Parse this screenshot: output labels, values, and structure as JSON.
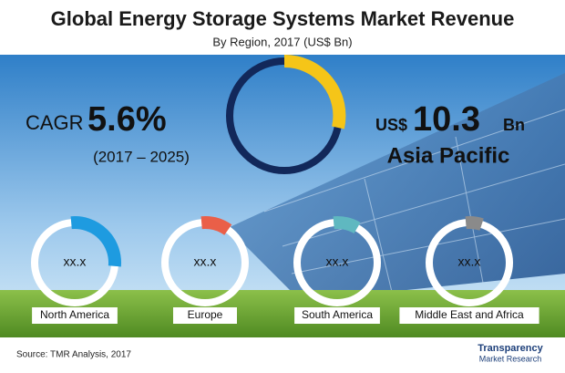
{
  "header": {
    "title": "Global Energy Storage Systems Market Revenue",
    "subtitle": "By Region, 2017 (US$ Bn)"
  },
  "cagr": {
    "label": "CAGR",
    "value": "5.6%",
    "period": "(2017 – 2025)"
  },
  "highlight": {
    "currency": "US$",
    "value": "10.3",
    "unit": "Bn",
    "region": "Asia Pacific"
  },
  "regions": [
    {
      "label": "North America",
      "value": "xx.x"
    },
    {
      "label": "Europe",
      "value": "xx.x"
    },
    {
      "label": "South America",
      "value": "xx.x"
    },
    {
      "label": "Middle East and Africa",
      "value": "xx.x"
    }
  ],
  "footer": {
    "source": "Source: TMR Analysis, 2017",
    "logo": [
      "Transparency",
      "Market Research"
    ]
  }
}
